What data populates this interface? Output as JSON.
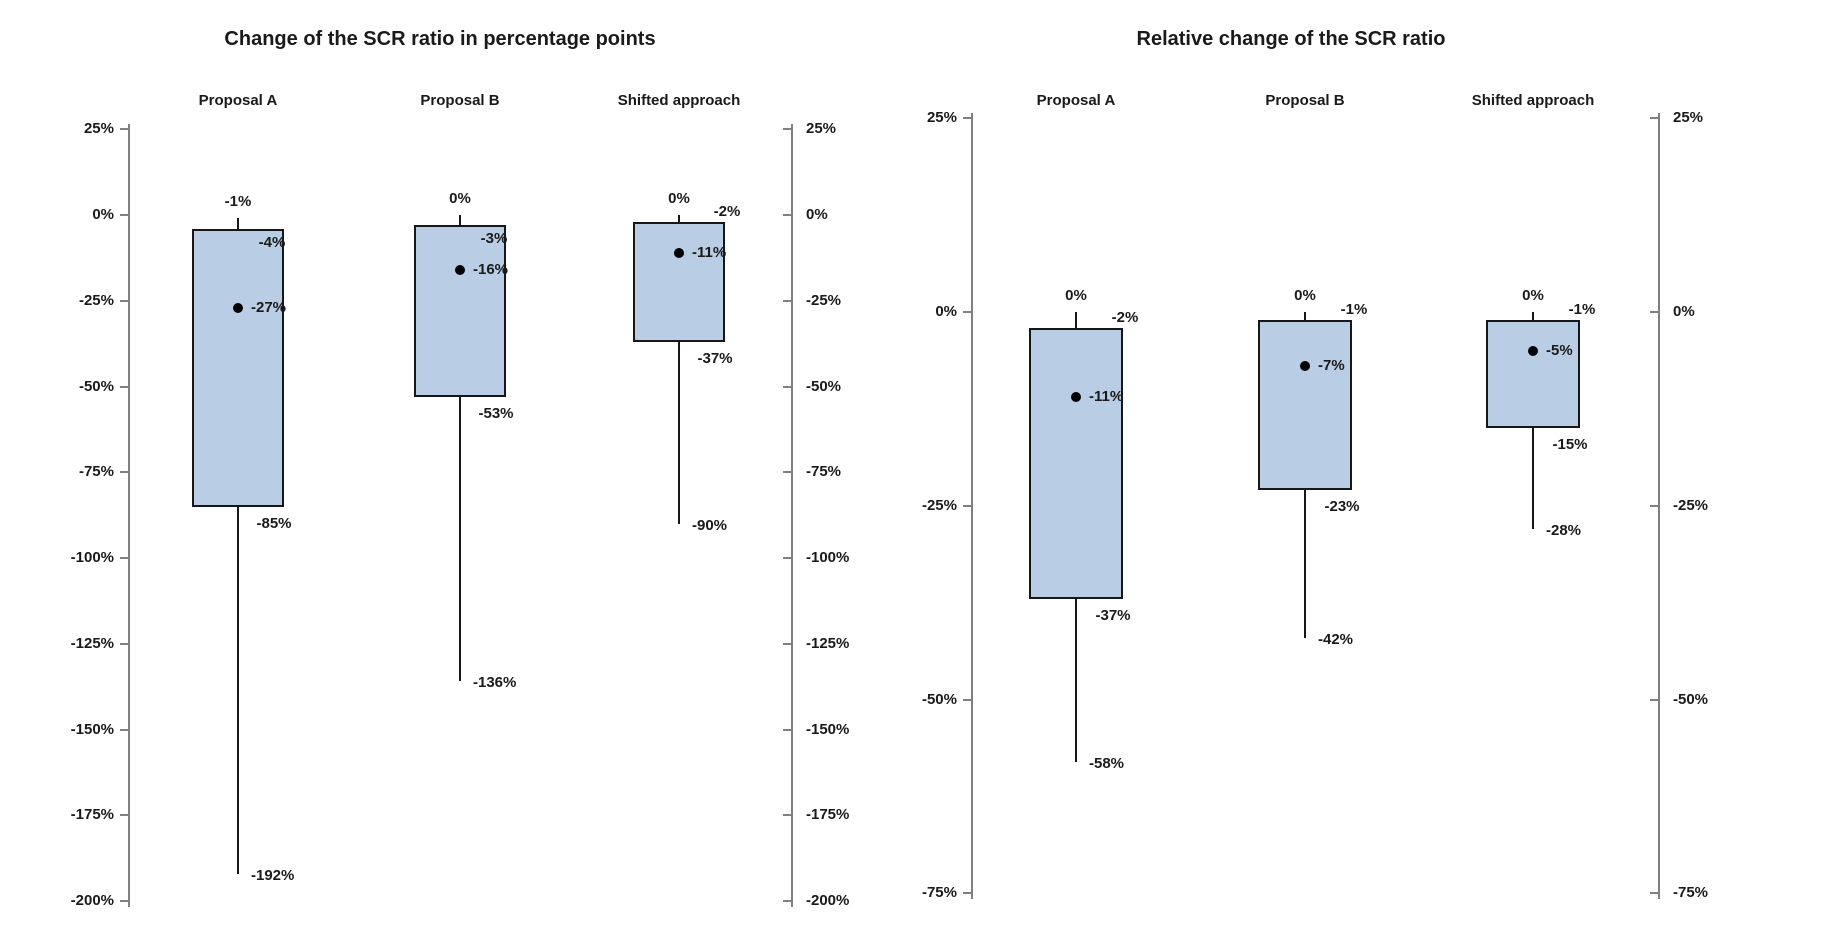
{
  "page": {
    "background": "#ffffff"
  },
  "colors": {
    "box_fill": "#b9cde4",
    "box_border": "#17171a",
    "whisker": "#17171a",
    "mean_dot": "#000000",
    "axis_line": "#808080",
    "text": "#1a1a1a"
  },
  "chart_data": [
    {
      "type": "boxplot",
      "title": "Change of the SCR ratio in percentage points",
      "xlabel": "",
      "ylabel": "",
      "ylim": [
        -200,
        25
      ],
      "grid": false,
      "axis_sides": [
        "left",
        "right"
      ],
      "yticks": [
        {
          "value": 25,
          "label": "25%"
        },
        {
          "value": 0,
          "label": "0%"
        },
        {
          "value": -25,
          "label": "-25%"
        },
        {
          "value": -50,
          "label": "-50%"
        },
        {
          "value": -75,
          "label": "-75%"
        },
        {
          "value": -100,
          "label": "-100%"
        },
        {
          "value": -125,
          "label": "-125%"
        },
        {
          "value": -150,
          "label": "-150%"
        },
        {
          "value": -175,
          "label": "-175%"
        },
        {
          "value": -200,
          "label": "-200%"
        }
      ],
      "categories": [
        "Proposal A",
        "Proposal B",
        "Shifted approach"
      ],
      "series": [
        {
          "name": "Proposal A",
          "max": -1,
          "q3": -4,
          "mean": -27,
          "q1": -85,
          "min": -192,
          "max_label": "-1%",
          "q3_label": "-4%",
          "mean_label": "-27%",
          "q1_label": "-85%",
          "min_label": "-192%"
        },
        {
          "name": "Proposal B",
          "max": 0,
          "q3": -3,
          "mean": -16,
          "q1": -53,
          "min": -136,
          "max_label": "0%",
          "q3_label": "-3%",
          "mean_label": "-16%",
          "q1_label": "-53%",
          "min_label": "-136%"
        },
        {
          "name": "Shifted approach",
          "max": 0,
          "q3": -2,
          "mean": -11,
          "q1": -37,
          "min": -90,
          "max_label": "0%",
          "q3_label": "-2%",
          "mean_label": "-11%",
          "q1_label": "-37%",
          "min_label": "-90%"
        }
      ]
    },
    {
      "type": "boxplot",
      "title": "Relative change of the SCR ratio",
      "xlabel": "",
      "ylabel": "",
      "ylim": [
        -75,
        25
      ],
      "grid": false,
      "axis_sides": [
        "left",
        "right"
      ],
      "yticks": [
        {
          "value": 25,
          "label": "25%"
        },
        {
          "value": 0,
          "label": "0%"
        },
        {
          "value": -25,
          "label": "-25%"
        },
        {
          "value": -50,
          "label": "-50%"
        },
        {
          "value": -75,
          "label": "-75%"
        }
      ],
      "categories": [
        "Proposal A",
        "Proposal B",
        "Shifted approach"
      ],
      "series": [
        {
          "name": "Proposal A",
          "max": 0,
          "q3": -2,
          "mean": -11,
          "q1": -37,
          "min": -58,
          "max_label": "0%",
          "q3_label": "-2%",
          "mean_label": "-11%",
          "q1_label": "-37%",
          "min_label": "-58%"
        },
        {
          "name": "Proposal B",
          "max": 0,
          "q3": -1,
          "mean": -7,
          "q1": -23,
          "min": -42,
          "max_label": "0%",
          "q3_label": "-1%",
          "mean_label": "-7%",
          "q1_label": "-23%",
          "min_label": "-42%"
        },
        {
          "name": "Shifted approach",
          "max": 0,
          "q3": -1,
          "mean": -5,
          "q1": -15,
          "min": -28,
          "max_label": "0%",
          "q3_label": "-1%",
          "mean_label": "-5%",
          "q1_label": "-15%",
          "min_label": "-28%"
        }
      ]
    }
  ]
}
